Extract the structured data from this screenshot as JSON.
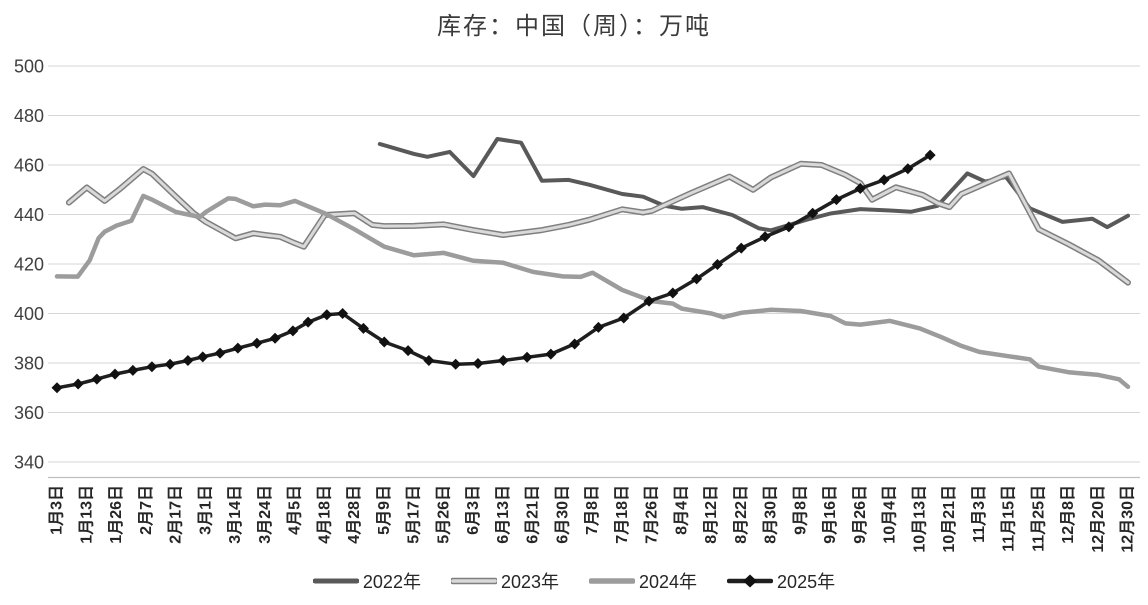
{
  "page": {
    "title": "库存：中国（周）：万吨"
  },
  "chart_data": {
    "type": "line",
    "title": "库存：中国（周）：万吨",
    "ylabel": "",
    "xlabel": "",
    "ylim": [
      340,
      500
    ],
    "y_ticks": [
      "500",
      "480",
      "460",
      "440",
      "420",
      "400",
      "380",
      "360",
      "340"
    ],
    "y_tick_values": [
      500,
      480,
      460,
      440,
      420,
      400,
      380,
      360,
      340
    ],
    "grid": "horizontal",
    "legend_position": "bottom",
    "x_labels": [
      "1月3日",
      "1月13日",
      "1月26日",
      "2月7日",
      "2月17日",
      "3月1日",
      "3月14日",
      "3月24日",
      "4月5日",
      "4月18日",
      "4月28日",
      "5月9日",
      "5月17日",
      "5月26日",
      "6月3日",
      "6月13日",
      "6月21日",
      "6月30日",
      "7月8日",
      "7月18日",
      "7月26日",
      "8月4日",
      "8月12日",
      "8月22日",
      "8月30日",
      "9月8日",
      "9月16日",
      "9月26日",
      "10月4日",
      "10月13日",
      "10月21日",
      "11月3日",
      "11月15日",
      "11月25日",
      "12月8日",
      "12月20日",
      "12月30日"
    ],
    "x_note": "series points are [label_index_position, value]; fractional positions fall between labeled dates",
    "series": [
      {
        "name": "2022年",
        "style": "solid",
        "color": "#595959",
        "line_width": 4,
        "marker": "none",
        "points": [
          [
            10.85,
            468.5
          ],
          [
            12,
            464.5
          ],
          [
            12.45,
            463.3
          ],
          [
            13.2,
            465.3
          ],
          [
            14,
            455.5
          ],
          [
            14.8,
            470.5
          ],
          [
            15.6,
            469
          ],
          [
            16.3,
            453.6
          ],
          [
            17.2,
            454
          ],
          [
            17.9,
            452
          ],
          [
            19,
            448.3
          ],
          [
            19.7,
            447.2
          ],
          [
            20.4,
            443.6
          ],
          [
            21,
            442.3
          ],
          [
            21.7,
            443
          ],
          [
            22.7,
            439.8
          ],
          [
            23.6,
            434.4
          ],
          [
            24,
            433.6
          ],
          [
            24.6,
            435.7
          ],
          [
            25.2,
            437.9
          ],
          [
            26,
            440.4
          ],
          [
            27,
            442.2
          ],
          [
            28,
            441.6
          ],
          [
            28.7,
            441.1
          ],
          [
            29.6,
            443.5
          ],
          [
            30.6,
            456.6
          ],
          [
            31.2,
            453.3
          ],
          [
            31.9,
            455.2
          ],
          [
            32.7,
            442.5
          ],
          [
            33.8,
            437
          ],
          [
            34.8,
            438.3
          ],
          [
            35.3,
            434.9
          ],
          [
            36,
            439.5
          ]
        ]
      },
      {
        "name": "2023年",
        "style": "outlined",
        "color": "#d9d9d9",
        "outline_color": "#7f7f7f",
        "line_width": 3,
        "outline_width": 6,
        "marker": "none",
        "points": [
          [
            0.4,
            444.8
          ],
          [
            1,
            450.9
          ],
          [
            1.6,
            445.5
          ],
          [
            2.1,
            450.2
          ],
          [
            2.9,
            458.4
          ],
          [
            3.2,
            456.4
          ],
          [
            4,
            447.2
          ],
          [
            4.6,
            440.5
          ],
          [
            5,
            437
          ],
          [
            6,
            430.4
          ],
          [
            6.6,
            432.4
          ],
          [
            7,
            431.7
          ],
          [
            7.5,
            431
          ],
          [
            8,
            428.4
          ],
          [
            8.3,
            427
          ],
          [
            9,
            439.8
          ],
          [
            10,
            440.5
          ],
          [
            10.6,
            435.8
          ],
          [
            11,
            435.3
          ],
          [
            12,
            435.4
          ],
          [
            13,
            436
          ],
          [
            14,
            433.7
          ],
          [
            15,
            431.7
          ],
          [
            16.3,
            433.7
          ],
          [
            17.2,
            435.8
          ],
          [
            17.9,
            437.9
          ],
          [
            19,
            442.1
          ],
          [
            19.7,
            440.8
          ],
          [
            20,
            441.5
          ],
          [
            21.3,
            448.6
          ],
          [
            22.6,
            455.3
          ],
          [
            23.4,
            450
          ],
          [
            24,
            455
          ],
          [
            25,
            460.5
          ],
          [
            25.7,
            460
          ],
          [
            26.5,
            456
          ],
          [
            27,
            452.7
          ],
          [
            27.4,
            446
          ],
          [
            28.2,
            451
          ],
          [
            29.1,
            447.9
          ],
          [
            29.6,
            444.6
          ],
          [
            30,
            443
          ],
          [
            30.4,
            448.3
          ],
          [
            32,
            456.6
          ],
          [
            33,
            434
          ],
          [
            34,
            428
          ],
          [
            35,
            421.5
          ],
          [
            36,
            412.5
          ]
        ]
      },
      {
        "name": "2024年",
        "style": "solid",
        "color": "#9c9c9c",
        "line_width": 4.5,
        "marker": "none",
        "points": [
          [
            0,
            415
          ],
          [
            0.7,
            414.9
          ],
          [
            1.1,
            421.5
          ],
          [
            1.4,
            430.5
          ],
          [
            1.6,
            433
          ],
          [
            2,
            435.5
          ],
          [
            2.5,
            437.5
          ],
          [
            2.9,
            447.5
          ],
          [
            3.2,
            446
          ],
          [
            4,
            441
          ],
          [
            4.8,
            439
          ],
          [
            5,
            441
          ],
          [
            5.75,
            446.5
          ],
          [
            6,
            446.3
          ],
          [
            6.6,
            443.3
          ],
          [
            7,
            444
          ],
          [
            7.5,
            443.7
          ],
          [
            8,
            445.5
          ],
          [
            9,
            440.5
          ],
          [
            10,
            434
          ],
          [
            11,
            427
          ],
          [
            12,
            423.5
          ],
          [
            13,
            424.5
          ],
          [
            14,
            421.3
          ],
          [
            15,
            420.5
          ],
          [
            16,
            416.8
          ],
          [
            17,
            415
          ],
          [
            17.6,
            414.8
          ],
          [
            18,
            416.5
          ],
          [
            19,
            409.5
          ],
          [
            20,
            405
          ],
          [
            20.7,
            404
          ],
          [
            21,
            402
          ],
          [
            22,
            400
          ],
          [
            22.4,
            398.5
          ],
          [
            23,
            400.3
          ],
          [
            24,
            401.5
          ],
          [
            25,
            401
          ],
          [
            26,
            399
          ],
          [
            26.5,
            396
          ],
          [
            27,
            395.5
          ],
          [
            28,
            397
          ],
          [
            29,
            394
          ],
          [
            29.7,
            390.6
          ],
          [
            30.4,
            386.9
          ],
          [
            31,
            384.5
          ],
          [
            32,
            382.7
          ],
          [
            32.7,
            381.5
          ],
          [
            33,
            378.5
          ],
          [
            34,
            376.3
          ],
          [
            35,
            375.2
          ],
          [
            35.7,
            373.4
          ],
          [
            36,
            370.4
          ]
        ]
      },
      {
        "name": "2025年",
        "style": "solid",
        "color": "#1f1f1f",
        "line_width": 3.5,
        "marker": "diamond",
        "marker_size": 11,
        "points": [
          [
            0,
            370
          ],
          [
            0.71,
            371.5
          ],
          [
            1.34,
            373.5
          ],
          [
            1.95,
            375.5
          ],
          [
            2.55,
            377
          ],
          [
            3.19,
            378.5
          ],
          [
            3.8,
            379.5
          ],
          [
            4.4,
            381
          ],
          [
            4.9,
            382.5
          ],
          [
            5.48,
            384
          ],
          [
            6.08,
            386
          ],
          [
            6.72,
            388
          ],
          [
            7.33,
            390
          ],
          [
            7.93,
            393
          ],
          [
            8.44,
            396.5
          ],
          [
            9.07,
            399.5
          ],
          [
            9.6,
            400
          ],
          [
            10.3,
            394
          ],
          [
            11,
            388.5
          ],
          [
            11.8,
            385
          ],
          [
            12.5,
            381
          ],
          [
            13.4,
            379.5
          ],
          [
            14.15,
            379.8
          ],
          [
            15,
            381
          ],
          [
            15.8,
            382.3
          ],
          [
            16.6,
            383.6
          ],
          [
            17.4,
            387.7
          ],
          [
            18.2,
            394.4
          ],
          [
            19.05,
            398.2
          ],
          [
            19.9,
            405
          ],
          [
            20.7,
            408.3
          ],
          [
            21.5,
            414
          ],
          [
            22.2,
            419.8
          ],
          [
            23,
            426.4
          ],
          [
            23.8,
            431
          ],
          [
            24.6,
            435
          ],
          [
            25.4,
            440.5
          ],
          [
            26.2,
            446
          ],
          [
            27,
            450.5
          ],
          [
            27.8,
            454
          ],
          [
            28.6,
            458.5
          ],
          [
            29.35,
            464
          ]
        ]
      }
    ],
    "colors": {
      "gridline": "#d6d6d6",
      "axis_line": "#bfbfbf",
      "tick_label": "#262626",
      "title": "#3b3b3b"
    }
  }
}
